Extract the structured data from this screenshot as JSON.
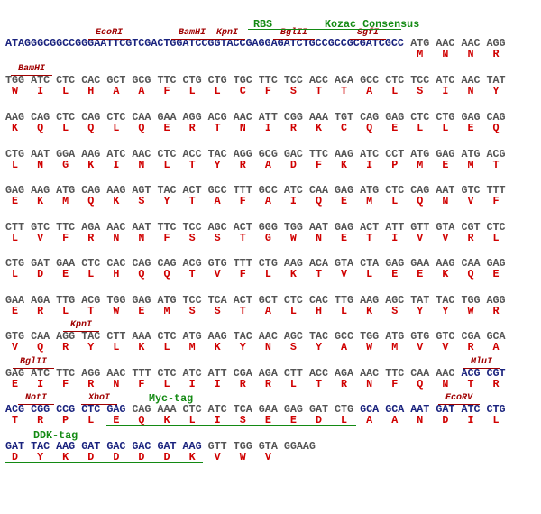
{
  "rows": [
    {
      "leader": "ATAGGGCGGCCGGGAATTCGTCGACTGGATCCGGTACCGAGGAGATCTGCCGCCGCGATCGCC",
      "labels": [
        "RBS",
        "Kozac Consensus",
        "EcoRI",
        "BamHI",
        "KpnI",
        "BglII",
        "SgfI"
      ],
      "codons": [
        "ATG",
        "AAC",
        "AAC",
        "AGG"
      ],
      "aas": [
        "M",
        "N",
        "N",
        "R"
      ]
    },
    {
      "labels": [
        "BamHI"
      ],
      "codons": [
        "TGG",
        "ATC",
        "CTC",
        "CAC",
        "GCT",
        "GCG",
        "TTC",
        "CTG",
        "CTG",
        "TGC",
        "TTC",
        "TCC",
        "ACC",
        "ACA",
        "GCC",
        "CTC",
        "TCC",
        "ATC",
        "AAC",
        "TAT"
      ],
      "aas": [
        "W",
        "I",
        "L",
        "H",
        "A",
        "A",
        "F",
        "L",
        "L",
        "C",
        "F",
        "S",
        "T",
        "T",
        "A",
        "L",
        "S",
        "I",
        "N",
        "Y"
      ]
    },
    {
      "labels": [],
      "codons": [
        "AAG",
        "CAG",
        "CTC",
        "CAG",
        "CTC",
        "CAA",
        "GAA",
        "AGG",
        "ACG",
        "AAC",
        "ATT",
        "CGG",
        "AAA",
        "TGT",
        "CAG",
        "GAG",
        "CTC",
        "CTG",
        "GAG",
        "CAG"
      ],
      "aas": [
        "K",
        "Q",
        "L",
        "Q",
        "L",
        "Q",
        "E",
        "R",
        "T",
        "N",
        "I",
        "R",
        "K",
        "C",
        "Q",
        "E",
        "L",
        "L",
        "E",
        "Q"
      ]
    },
    {
      "labels": [],
      "codons": [
        "CTG",
        "AAT",
        "GGA",
        "AAG",
        "ATC",
        "AAC",
        "CTC",
        "ACC",
        "TAC",
        "AGG",
        "GCG",
        "GAC",
        "TTC",
        "AAG",
        "ATC",
        "CCT",
        "ATG",
        "GAG",
        "ATG",
        "ACG"
      ],
      "aas": [
        "L",
        "N",
        "G",
        "K",
        "I",
        "N",
        "L",
        "T",
        "Y",
        "R",
        "A",
        "D",
        "F",
        "K",
        "I",
        "P",
        "M",
        "E",
        "M",
        "T"
      ]
    },
    {
      "labels": [],
      "codons": [
        "GAG",
        "AAG",
        "ATG",
        "CAG",
        "AAG",
        "AGT",
        "TAC",
        "ACT",
        "GCC",
        "TTT",
        "GCC",
        "ATC",
        "CAA",
        "GAG",
        "ATG",
        "CTC",
        "CAG",
        "AAT",
        "GTC",
        "TTT"
      ],
      "aas": [
        "E",
        "K",
        "M",
        "Q",
        "K",
        "S",
        "Y",
        "T",
        "A",
        "F",
        "A",
        "I",
        "Q",
        "E",
        "M",
        "L",
        "Q",
        "N",
        "V",
        "F"
      ]
    },
    {
      "labels": [],
      "codons": [
        "CTT",
        "GTC",
        "TTC",
        "AGA",
        "AAC",
        "AAT",
        "TTC",
        "TCC",
        "AGC",
        "ACT",
        "GGG",
        "TGG",
        "AAT",
        "GAG",
        "ACT",
        "ATT",
        "GTT",
        "GTA",
        "CGT",
        "CTC"
      ],
      "aas": [
        "L",
        "V",
        "F",
        "R",
        "N",
        "N",
        "F",
        "S",
        "S",
        "T",
        "G",
        "W",
        "N",
        "E",
        "T",
        "I",
        "V",
        "V",
        "R",
        "L"
      ]
    },
    {
      "labels": [],
      "codons": [
        "CTG",
        "GAT",
        "GAA",
        "CTC",
        "CAC",
        "CAG",
        "CAG",
        "ACG",
        "GTG",
        "TTT",
        "CTG",
        "AAG",
        "ACA",
        "GTA",
        "CTA",
        "GAG",
        "GAA",
        "AAG",
        "CAA",
        "GAG"
      ],
      "aas": [
        "L",
        "D",
        "E",
        "L",
        "H",
        "Q",
        "Q",
        "T",
        "V",
        "F",
        "L",
        "K",
        "T",
        "V",
        "L",
        "E",
        "E",
        "K",
        "Q",
        "E"
      ]
    },
    {
      "labels": [],
      "codons": [
        "GAA",
        "AGA",
        "TTG",
        "ACG",
        "TGG",
        "GAG",
        "ATG",
        "TCC",
        "TCA",
        "ACT",
        "GCT",
        "CTC",
        "CAC",
        "TTG",
        "AAG",
        "AGC",
        "TAT",
        "TAC",
        "TGG",
        "AGG"
      ],
      "aas": [
        "E",
        "R",
        "L",
        "T",
        "W",
        "E",
        "M",
        "S",
        "S",
        "T",
        "A",
        "L",
        "H",
        "L",
        "K",
        "S",
        "Y",
        "Y",
        "W",
        "R"
      ]
    },
    {
      "labels": [
        "KpnI"
      ],
      "codons": [
        "GTG",
        "CAA",
        "AGG",
        "TAC",
        "CTT",
        "AAA",
        "CTC",
        "ATG",
        "AAG",
        "TAC",
        "AAC",
        "AGC",
        "TAC",
        "GCC",
        "TGG",
        "ATG",
        "GTG",
        "GTC",
        "CGA",
        "GCA"
      ],
      "aas": [
        "V",
        "Q",
        "R",
        "Y",
        "L",
        "K",
        "L",
        "M",
        "K",
        "Y",
        "N",
        "S",
        "Y",
        "A",
        "W",
        "M",
        "V",
        "V",
        "R",
        "A"
      ]
    },
    {
      "labels": [
        "BglII",
        "MluI"
      ],
      "codons": [
        "GAG",
        "ATC",
        "TTC",
        "AGG",
        "AAC",
        "TTT",
        "CTC",
        "ATC",
        "ATT",
        "CGA",
        "AGA",
        "CTT",
        "ACC",
        "AGA",
        "AAC",
        "TTC",
        "CAA",
        "AAC",
        "ACG",
        "CGT"
      ],
      "aas": [
        "E",
        "I",
        "F",
        "R",
        "N",
        "F",
        "L",
        "I",
        "I",
        "R",
        "R",
        "L",
        "T",
        "R",
        "N",
        "F",
        "Q",
        "N",
        "T",
        "R"
      ]
    },
    {
      "labels": [
        "NotI",
        "XhoI",
        "Myc-tag",
        "EcoRV"
      ],
      "codons": [
        "ACG",
        "CGG",
        "CCG",
        "CTC",
        "GAG",
        "CAG",
        "AAA",
        "CTC",
        "ATC",
        "TCA",
        "GAA",
        "GAG",
        "GAT",
        "CTG",
        "GCA",
        "GCA",
        "AAT",
        "GAT",
        "ATC",
        "CTG"
      ],
      "aas": [
        "T",
        "R",
        "P",
        "L",
        "E",
        "Q",
        "K",
        "L",
        "I",
        "S",
        "E",
        "E",
        "D",
        "L",
        "A",
        "A",
        "N",
        "D",
        "I",
        "L"
      ]
    },
    {
      "labels": [
        "DDK-tag"
      ],
      "codons": [
        "GAT",
        "TAC",
        "AAG",
        "GAT",
        "GAC",
        "GAC",
        "GAT",
        "AAG",
        "GTT",
        "TGG",
        "GTA",
        "GGAAG"
      ],
      "aas": [
        "D",
        "Y",
        "K",
        "D",
        "D",
        "D",
        "D",
        "K",
        "V",
        "W",
        "V"
      ]
    }
  ]
}
